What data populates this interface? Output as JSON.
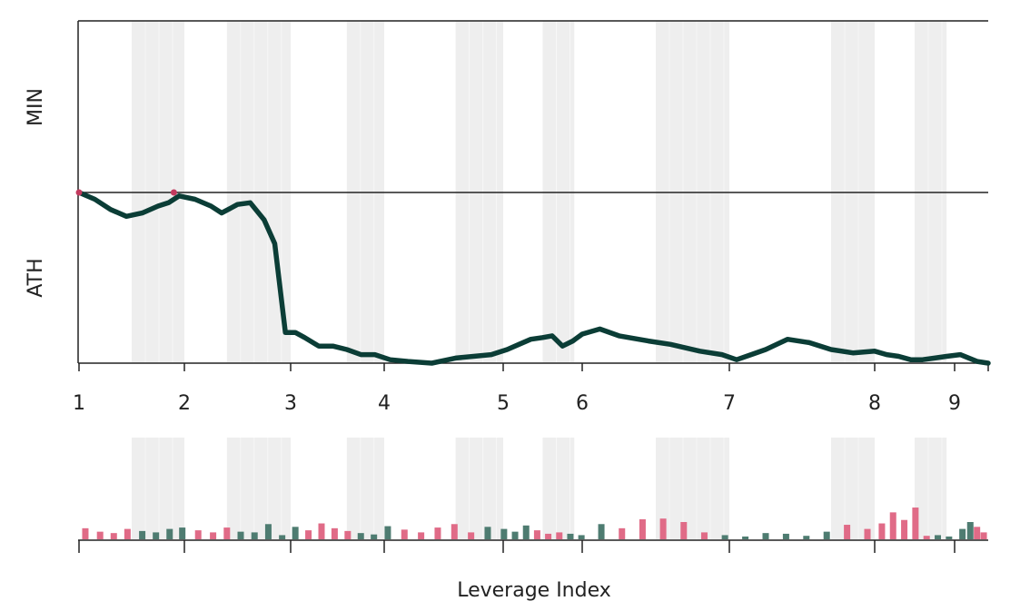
{
  "chart_data": [
    {
      "type": "line",
      "title": "",
      "xlabel": "",
      "ylabel": "",
      "band_labels": {
        "top": "MIN",
        "bottom": "ATH"
      },
      "x_ticks": [
        "1",
        "2",
        "3",
        "4",
        "5",
        "6",
        "7",
        "8",
        "9"
      ],
      "x_tick_values": [
        1,
        2,
        3,
        4,
        5,
        6,
        7,
        8,
        9
      ],
      "xlim": [
        1,
        9.3
      ],
      "ylim": [
        -1,
        1
      ],
      "ath_markers": [
        1,
        1.9
      ],
      "shaded_ranges": [
        [
          1.5,
          2.0
        ],
        [
          2.4,
          3.0
        ],
        [
          3.6,
          4.0
        ],
        [
          4.6,
          5.0
        ],
        [
          5.5,
          5.9
        ],
        [
          6.5,
          7.0
        ],
        [
          7.7,
          8.0
        ],
        [
          8.5,
          8.9
        ]
      ],
      "series": [
        {
          "name": "",
          "color": "#0b3d36",
          "x": [
            1.0,
            1.15,
            1.3,
            1.45,
            1.6,
            1.75,
            1.85,
            1.95,
            2.1,
            2.25,
            2.35,
            2.5,
            2.62,
            2.75,
            2.85,
            2.95,
            3.05,
            3.15,
            3.3,
            3.45,
            3.6,
            3.75,
            3.9,
            4.05,
            4.2,
            4.4,
            4.6,
            4.75,
            4.9,
            5.05,
            5.2,
            5.35,
            5.5,
            5.62,
            5.75,
            5.88,
            6.0,
            6.12,
            6.25,
            6.45,
            6.6,
            6.8,
            6.95,
            7.05,
            7.15,
            7.25,
            7.4,
            7.55,
            7.7,
            7.85,
            8.0,
            8.15,
            8.3,
            8.45,
            8.6,
            8.75,
            8.9,
            9.05,
            9.2,
            9.3
          ],
          "y": [
            0,
            -0.04,
            -0.1,
            -0.14,
            -0.12,
            -0.08,
            -0.06,
            -0.02,
            -0.04,
            -0.08,
            -0.12,
            -0.07,
            -0.06,
            -0.16,
            -0.3,
            -0.82,
            -0.82,
            -0.85,
            -0.9,
            -0.9,
            -0.92,
            -0.95,
            -0.95,
            -0.98,
            -0.99,
            -1.0,
            -0.97,
            -0.96,
            -0.95,
            -0.92,
            -0.89,
            -0.86,
            -0.85,
            -0.84,
            -0.9,
            -0.87,
            -0.83,
            -0.8,
            -0.84,
            -0.87,
            -0.89,
            -0.93,
            -0.95,
            -0.98,
            -0.95,
            -0.92,
            -0.86,
            -0.88,
            -0.92,
            -0.94,
            -0.93,
            -0.95,
            -0.96,
            -0.98,
            -0.98,
            -0.97,
            -0.96,
            -0.95,
            -0.99,
            -1.0
          ]
        }
      ]
    },
    {
      "type": "bar",
      "title": "",
      "xlabel": "Leverage Index",
      "ylabel": "",
      "ylim": [
        0,
        1
      ],
      "x_tick_values": [
        1,
        2,
        3,
        4,
        5,
        6,
        7,
        8,
        9
      ],
      "colors": {
        "up": "#e06b87",
        "down": "#4e7c71"
      },
      "shaded_ranges": [
        [
          1.5,
          2.0
        ],
        [
          2.4,
          3.0
        ],
        [
          3.6,
          4.0
        ],
        [
          4.6,
          5.0
        ],
        [
          5.5,
          5.9
        ],
        [
          6.5,
          7.0
        ],
        [
          7.7,
          8.0
        ],
        [
          8.5,
          8.9
        ]
      ],
      "bars": [
        {
          "x": 1.06,
          "value": 0.32,
          "dir": "up"
        },
        {
          "x": 1.2,
          "value": 0.22,
          "dir": "up"
        },
        {
          "x": 1.33,
          "value": 0.18,
          "dir": "up"
        },
        {
          "x": 1.46,
          "value": 0.3,
          "dir": "up"
        },
        {
          "x": 1.6,
          "value": 0.24,
          "dir": "down"
        },
        {
          "x": 1.73,
          "value": 0.2,
          "dir": "down"
        },
        {
          "x": 1.86,
          "value": 0.3,
          "dir": "down"
        },
        {
          "x": 1.98,
          "value": 0.34,
          "dir": "down"
        },
        {
          "x": 2.13,
          "value": 0.26,
          "dir": "up"
        },
        {
          "x": 2.27,
          "value": 0.2,
          "dir": "up"
        },
        {
          "x": 2.4,
          "value": 0.34,
          "dir": "up"
        },
        {
          "x": 2.53,
          "value": 0.22,
          "dir": "down"
        },
        {
          "x": 2.66,
          "value": 0.2,
          "dir": "down"
        },
        {
          "x": 2.79,
          "value": 0.44,
          "dir": "down"
        },
        {
          "x": 2.92,
          "value": 0.12,
          "dir": "down"
        },
        {
          "x": 3.05,
          "value": 0.36,
          "dir": "down"
        },
        {
          "x": 3.19,
          "value": 0.26,
          "dir": "up"
        },
        {
          "x": 3.33,
          "value": 0.46,
          "dir": "up"
        },
        {
          "x": 3.47,
          "value": 0.32,
          "dir": "up"
        },
        {
          "x": 3.61,
          "value": 0.24,
          "dir": "up"
        },
        {
          "x": 3.75,
          "value": 0.18,
          "dir": "down"
        },
        {
          "x": 3.89,
          "value": 0.14,
          "dir": "down"
        },
        {
          "x": 4.03,
          "value": 0.38,
          "dir": "down"
        },
        {
          "x": 4.17,
          "value": 0.28,
          "dir": "up"
        },
        {
          "x": 4.31,
          "value": 0.2,
          "dir": "up"
        },
        {
          "x": 4.45,
          "value": 0.34,
          "dir": "up"
        },
        {
          "x": 4.59,
          "value": 0.44,
          "dir": "up"
        },
        {
          "x": 4.73,
          "value": 0.2,
          "dir": "up"
        },
        {
          "x": 4.87,
          "value": 0.36,
          "dir": "down"
        },
        {
          "x": 5.01,
          "value": 0.3,
          "dir": "down"
        },
        {
          "x": 5.15,
          "value": 0.22,
          "dir": "down"
        },
        {
          "x": 5.29,
          "value": 0.4,
          "dir": "down"
        },
        {
          "x": 5.43,
          "value": 0.26,
          "dir": "up"
        },
        {
          "x": 5.57,
          "value": 0.16,
          "dir": "up"
        },
        {
          "x": 5.71,
          "value": 0.2,
          "dir": "up"
        },
        {
          "x": 5.85,
          "value": 0.16,
          "dir": "down"
        },
        {
          "x": 5.99,
          "value": 0.12,
          "dir": "down"
        },
        {
          "x": 6.13,
          "value": 0.44,
          "dir": "down"
        },
        {
          "x": 6.27,
          "value": 0.32,
          "dir": "up"
        },
        {
          "x": 6.41,
          "value": 0.58,
          "dir": "up"
        },
        {
          "x": 6.55,
          "value": 0.6,
          "dir": "up"
        },
        {
          "x": 6.69,
          "value": 0.5,
          "dir": "up"
        },
        {
          "x": 6.83,
          "value": 0.2,
          "dir": "up"
        },
        {
          "x": 6.97,
          "value": 0.12,
          "dir": "down"
        },
        {
          "x": 7.11,
          "value": 0.08,
          "dir": "down"
        },
        {
          "x": 7.25,
          "value": 0.18,
          "dir": "down"
        },
        {
          "x": 7.39,
          "value": 0.16,
          "dir": "down"
        },
        {
          "x": 7.53,
          "value": 0.1,
          "dir": "down"
        },
        {
          "x": 7.67,
          "value": 0.22,
          "dir": "down"
        },
        {
          "x": 7.81,
          "value": 0.42,
          "dir": "up"
        },
        {
          "x": 7.95,
          "value": 0.3,
          "dir": "up"
        },
        {
          "x": 8.09,
          "value": 0.46,
          "dir": "up"
        },
        {
          "x": 8.23,
          "value": 0.78,
          "dir": "up"
        },
        {
          "x": 8.37,
          "value": 0.56,
          "dir": "up"
        },
        {
          "x": 8.51,
          "value": 0.92,
          "dir": "up"
        },
        {
          "x": 8.65,
          "value": 0.1,
          "dir": "up"
        },
        {
          "x": 8.79,
          "value": 0.12,
          "dir": "down"
        },
        {
          "x": 8.93,
          "value": 0.08,
          "dir": "down"
        },
        {
          "x": 9.07,
          "value": 0.3,
          "dir": "down"
        },
        {
          "x": 9.14,
          "value": 0.5,
          "dir": "down"
        },
        {
          "x": 9.2,
          "value": 0.36,
          "dir": "up"
        },
        {
          "x": 9.26,
          "value": 0.2,
          "dir": "up"
        }
      ]
    }
  ]
}
